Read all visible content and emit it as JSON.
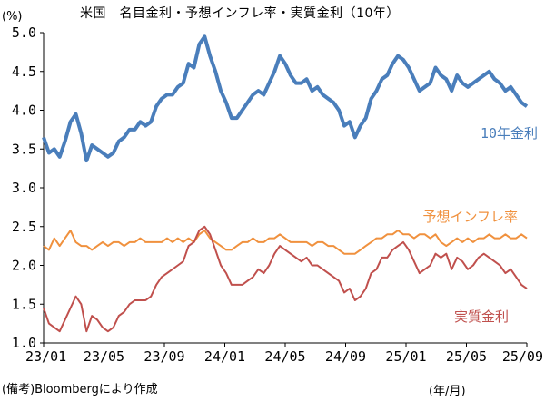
{
  "chart_data": {
    "type": "line",
    "title": "米国　名目金利・予想インフレ率・実質金利（10年）",
    "yunit": "(%)",
    "source": "(備考)Bloombergにより作成",
    "xunit": "(年/月)",
    "ylim": [
      1.0,
      5.0
    ],
    "yticks": [
      "1.0",
      "1.5",
      "2.0",
      "2.5",
      "3.0",
      "3.5",
      "4.0",
      "4.5",
      "5.0"
    ],
    "xticks": [
      "23/01",
      "23/05",
      "23/09",
      "24/01",
      "24/05",
      "24/09",
      "25/01",
      "25/05",
      "25/09"
    ],
    "grid": false,
    "series": [
      {
        "name": "10年金利",
        "color": "#4a7ebb",
        "values": [
          3.65,
          3.45,
          3.5,
          3.4,
          3.6,
          3.85,
          3.95,
          3.7,
          3.35,
          3.55,
          3.5,
          3.45,
          3.4,
          3.45,
          3.6,
          3.65,
          3.75,
          3.75,
          3.85,
          3.8,
          3.85,
          4.05,
          4.15,
          4.2,
          4.2,
          4.3,
          4.35,
          4.6,
          4.55,
          4.85,
          4.95,
          4.7,
          4.5,
          4.25,
          4.1,
          3.9,
          3.9,
          4.0,
          4.1,
          4.2,
          4.25,
          4.2,
          4.35,
          4.5,
          4.7,
          4.6,
          4.45,
          4.35,
          4.35,
          4.4,
          4.25,
          4.3,
          4.2,
          4.15,
          4.1,
          4.0,
          3.8,
          3.85,
          3.65,
          3.8,
          3.9,
          4.15,
          4.25,
          4.4,
          4.45,
          4.6,
          4.7,
          4.65,
          4.55,
          4.4,
          4.25,
          4.3,
          4.35,
          4.55,
          4.45,
          4.4,
          4.25,
          4.45,
          4.35,
          4.3,
          4.35,
          4.4,
          4.45,
          4.5,
          4.4,
          4.35,
          4.25,
          4.3,
          4.2,
          4.1,
          4.05
        ],
        "label": "10年金利"
      },
      {
        "name": "予想インフレ率",
        "color": "#f0913e",
        "values": [
          2.25,
          2.2,
          2.35,
          2.25,
          2.35,
          2.45,
          2.3,
          2.25,
          2.25,
          2.2,
          2.25,
          2.3,
          2.25,
          2.3,
          2.3,
          2.25,
          2.3,
          2.3,
          2.35,
          2.3,
          2.3,
          2.3,
          2.3,
          2.35,
          2.3,
          2.35,
          2.3,
          2.35,
          2.3,
          2.4,
          2.45,
          2.35,
          2.3,
          2.25,
          2.2,
          2.2,
          2.25,
          2.3,
          2.3,
          2.35,
          2.3,
          2.3,
          2.35,
          2.35,
          2.4,
          2.35,
          2.3,
          2.3,
          2.3,
          2.3,
          2.25,
          2.3,
          2.3,
          2.25,
          2.25,
          2.2,
          2.15,
          2.15,
          2.15,
          2.2,
          2.25,
          2.3,
          2.35,
          2.35,
          2.4,
          2.4,
          2.45,
          2.4,
          2.4,
          2.35,
          2.4,
          2.4,
          2.35,
          2.4,
          2.3,
          2.25,
          2.3,
          2.35,
          2.3,
          2.35,
          2.3,
          2.35,
          2.35,
          2.4,
          2.35,
          2.35,
          2.4,
          2.35,
          2.35,
          2.4,
          2.35
        ],
        "label": "予想インフレ率"
      },
      {
        "name": "実質金利",
        "color": "#c0504d",
        "values": [
          1.45,
          1.25,
          1.2,
          1.15,
          1.3,
          1.45,
          1.6,
          1.5,
          1.15,
          1.35,
          1.3,
          1.2,
          1.15,
          1.2,
          1.35,
          1.4,
          1.5,
          1.55,
          1.55,
          1.55,
          1.6,
          1.75,
          1.85,
          1.9,
          1.95,
          2.0,
          2.05,
          2.25,
          2.3,
          2.45,
          2.5,
          2.4,
          2.2,
          2.0,
          1.9,
          1.75,
          1.75,
          1.75,
          1.8,
          1.85,
          1.95,
          1.9,
          2.0,
          2.15,
          2.25,
          2.2,
          2.15,
          2.1,
          2.05,
          2.1,
          2.0,
          2.0,
          1.95,
          1.9,
          1.85,
          1.8,
          1.65,
          1.7,
          1.55,
          1.6,
          1.7,
          1.9,
          1.95,
          2.1,
          2.1,
          2.2,
          2.25,
          2.3,
          2.2,
          2.05,
          1.9,
          1.95,
          2.0,
          2.15,
          2.1,
          2.15,
          1.95,
          2.1,
          2.05,
          1.95,
          2.0,
          2.1,
          2.15,
          2.1,
          2.05,
          2.0,
          1.9,
          1.95,
          1.85,
          1.75,
          1.7
        ],
        "label": "実質金利"
      }
    ]
  }
}
